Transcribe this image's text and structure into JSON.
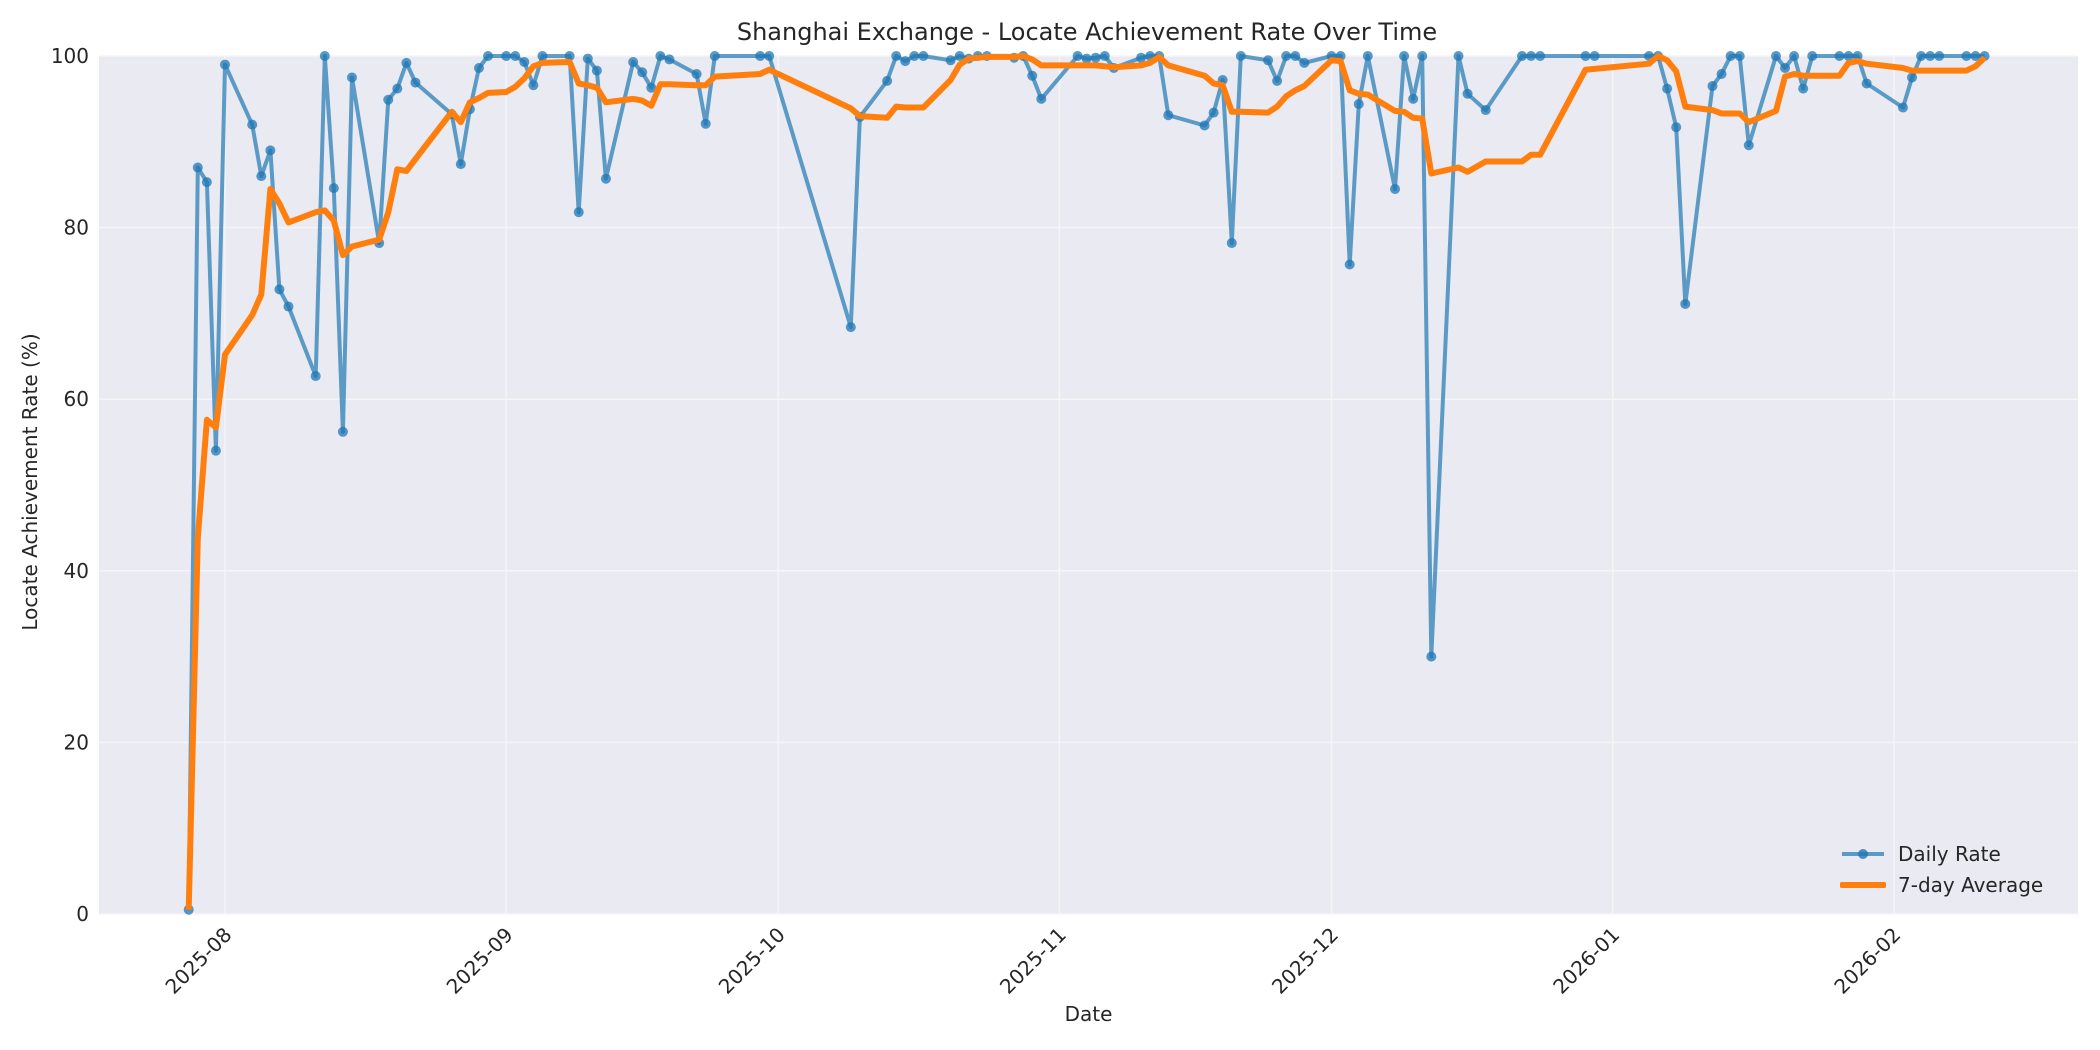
{
  "chart_data": {
    "type": "line",
    "title": "Shanghai Exchange - Locate Achievement Rate Over Time",
    "xlabel": "Date",
    "ylabel": "Locate Achievement Rate (%)",
    "ylim": [
      0,
      100
    ],
    "yticks": [
      0,
      20,
      40,
      60,
      80,
      100
    ],
    "xticks": [
      "2025-08",
      "2025-09",
      "2025-10",
      "2025-11",
      "2025-12",
      "2026-01",
      "2026-02"
    ],
    "grid": true,
    "legend_position": "lower right",
    "series": [
      {
        "name": "Daily Rate",
        "color": "#1f77b4",
        "marker": "circle",
        "points": [
          [
            "2025-07-28",
            0.5
          ],
          [
            "2025-07-29",
            87
          ],
          [
            "2025-07-30",
            85.3
          ],
          [
            "2025-07-31",
            54
          ],
          [
            "2025-08-01",
            99
          ],
          [
            "2025-08-04",
            92
          ],
          [
            "2025-08-05",
            86
          ],
          [
            "2025-08-06",
            89
          ],
          [
            "2025-08-07",
            72.8
          ],
          [
            "2025-08-08",
            70.8
          ],
          [
            "2025-08-11",
            62.7
          ],
          [
            "2025-08-12",
            100
          ],
          [
            "2025-08-13",
            84.6
          ],
          [
            "2025-08-14",
            56.2
          ],
          [
            "2025-08-15",
            97.5
          ],
          [
            "2025-08-18",
            78.2
          ],
          [
            "2025-08-19",
            94.9
          ],
          [
            "2025-08-20",
            96.2
          ],
          [
            "2025-08-21",
            99.2
          ],
          [
            "2025-08-22",
            96.9
          ],
          [
            "2025-08-26",
            93.2
          ],
          [
            "2025-08-27",
            87.4
          ],
          [
            "2025-08-28",
            93.8
          ],
          [
            "2025-08-29",
            98.6
          ],
          [
            "2025-08-30",
            100
          ],
          [
            "2025-09-01",
            100
          ],
          [
            "2025-09-02",
            100
          ],
          [
            "2025-09-03",
            99.3
          ],
          [
            "2025-09-04",
            96.6
          ],
          [
            "2025-09-05",
            100
          ],
          [
            "2025-09-08",
            100
          ],
          [
            "2025-09-09",
            81.8
          ],
          [
            "2025-09-10",
            99.7
          ],
          [
            "2025-09-11",
            98.3
          ],
          [
            "2025-09-12",
            85.7
          ],
          [
            "2025-09-15",
            99.3
          ],
          [
            "2025-09-16",
            98.1
          ],
          [
            "2025-09-17",
            96.3
          ],
          [
            "2025-09-18",
            100
          ],
          [
            "2025-09-19",
            99.6
          ],
          [
            "2025-09-22",
            97.9
          ],
          [
            "2025-09-23",
            92.1
          ],
          [
            "2025-09-24",
            100
          ],
          [
            "2025-09-29",
            100
          ],
          [
            "2025-09-30",
            100
          ],
          [
            "2025-10-09",
            68.4
          ],
          [
            "2025-10-10",
            92.9
          ],
          [
            "2025-10-13",
            97.1
          ],
          [
            "2025-10-14",
            100
          ],
          [
            "2025-10-15",
            99.4
          ],
          [
            "2025-10-16",
            100
          ],
          [
            "2025-10-17",
            100
          ],
          [
            "2025-10-20",
            99.5
          ],
          [
            "2025-10-21",
            100
          ],
          [
            "2025-10-22",
            99.7
          ],
          [
            "2025-10-23",
            100
          ],
          [
            "2025-10-24",
            100
          ],
          [
            "2025-10-27",
            99.8
          ],
          [
            "2025-10-28",
            100
          ],
          [
            "2025-10-29",
            97.7
          ],
          [
            "2025-10-30",
            95
          ],
          [
            "2025-11-03",
            100
          ],
          [
            "2025-11-04",
            99.7
          ],
          [
            "2025-11-05",
            99.8
          ],
          [
            "2025-11-06",
            100
          ],
          [
            "2025-11-07",
            98.6
          ],
          [
            "2025-11-10",
            99.8
          ],
          [
            "2025-11-11",
            100
          ],
          [
            "2025-11-12",
            100
          ],
          [
            "2025-11-13",
            93.1
          ],
          [
            "2025-11-17",
            91.9
          ],
          [
            "2025-11-18",
            93.4
          ],
          [
            "2025-11-19",
            97.2
          ],
          [
            "2025-11-20",
            78.2
          ],
          [
            "2025-11-21",
            100
          ],
          [
            "2025-11-24",
            99.5
          ],
          [
            "2025-11-25",
            97.1
          ],
          [
            "2025-11-26",
            100
          ],
          [
            "2025-11-27",
            100
          ],
          [
            "2025-11-28",
            99.2
          ],
          [
            "2025-12-01",
            100
          ],
          [
            "2025-12-02",
            100
          ],
          [
            "2025-12-03",
            75.7
          ],
          [
            "2025-12-04",
            94.4
          ],
          [
            "2025-12-05",
            100
          ],
          [
            "2025-12-08",
            84.5
          ],
          [
            "2025-12-09",
            100
          ],
          [
            "2025-12-10",
            95
          ],
          [
            "2025-12-11",
            100
          ],
          [
            "2025-12-12",
            30
          ],
          [
            "2025-12-15",
            100
          ],
          [
            "2025-12-16",
            95.6
          ],
          [
            "2025-12-18",
            93.7
          ],
          [
            "2025-12-22",
            100
          ],
          [
            "2025-12-23",
            100
          ],
          [
            "2025-12-24",
            100
          ],
          [
            "2025-12-29",
            100
          ],
          [
            "2025-12-30",
            100
          ],
          [
            "2026-01-05",
            100
          ],
          [
            "2026-01-06",
            100
          ],
          [
            "2026-01-07",
            96.2
          ],
          [
            "2026-01-08",
            91.7
          ],
          [
            "2026-01-09",
            71.1
          ],
          [
            "2026-01-12",
            96.5
          ],
          [
            "2026-01-13",
            97.9
          ],
          [
            "2026-01-14",
            100
          ],
          [
            "2026-01-15",
            100
          ],
          [
            "2026-01-16",
            89.6
          ],
          [
            "2026-01-19",
            100
          ],
          [
            "2026-01-20",
            98.6
          ],
          [
            "2026-01-21",
            100
          ],
          [
            "2026-01-22",
            96.2
          ],
          [
            "2026-01-23",
            100
          ],
          [
            "2026-01-26",
            100
          ],
          [
            "2026-01-27",
            100
          ],
          [
            "2026-01-28",
            100
          ],
          [
            "2026-01-29",
            96.8
          ],
          [
            "2026-02-02",
            94
          ],
          [
            "2026-02-03",
            97.5
          ],
          [
            "2026-02-04",
            100
          ],
          [
            "2026-02-05",
            100
          ],
          [
            "2026-02-06",
            100
          ],
          [
            "2026-02-09",
            100
          ],
          [
            "2026-02-10",
            100
          ],
          [
            "2026-02-11",
            100
          ]
        ]
      },
      {
        "name": "7-day Average",
        "color": "#ff7f0e",
        "marker": "none",
        "points": [
          [
            "2025-07-28",
            0.5
          ],
          [
            "2025-07-29",
            43.8
          ],
          [
            "2025-07-30",
            57.6
          ],
          [
            "2025-07-31",
            56.7
          ],
          [
            "2025-08-01",
            65.2
          ],
          [
            "2025-08-04",
            69.8
          ],
          [
            "2025-08-05",
            72.2
          ],
          [
            "2025-08-06",
            84.5
          ],
          [
            "2025-08-07",
            82.8
          ],
          [
            "2025-08-08",
            80.6
          ],
          [
            "2025-08-11",
            81.8
          ],
          [
            "2025-08-12",
            82
          ],
          [
            "2025-08-13",
            80.8
          ],
          [
            "2025-08-14",
            76.8
          ],
          [
            "2025-08-15",
            77.8
          ],
          [
            "2025-08-18",
            78.6
          ],
          [
            "2025-08-19",
            81.8
          ],
          [
            "2025-08-20",
            86.8
          ],
          [
            "2025-08-21",
            86.6
          ],
          [
            "2025-08-22",
            88
          ],
          [
            "2025-08-26",
            93.5
          ],
          [
            "2025-08-27",
            92.3
          ],
          [
            "2025-08-28",
            94.6
          ],
          [
            "2025-08-29",
            95.1
          ],
          [
            "2025-08-30",
            95.7
          ],
          [
            "2025-09-01",
            95.8
          ],
          [
            "2025-09-02",
            96.4
          ],
          [
            "2025-09-03",
            97.4
          ],
          [
            "2025-09-04",
            98.8
          ],
          [
            "2025-09-05",
            99.2
          ],
          [
            "2025-09-08",
            99.3
          ],
          [
            "2025-09-09",
            96.8
          ],
          [
            "2025-09-10",
            96.6
          ],
          [
            "2025-09-11",
            96.3
          ],
          [
            "2025-09-12",
            94.6
          ],
          [
            "2025-09-15",
            95
          ],
          [
            "2025-09-16",
            94.8
          ],
          [
            "2025-09-17",
            94.2
          ],
          [
            "2025-09-18",
            96.7
          ],
          [
            "2025-09-19",
            96.7
          ],
          [
            "2025-09-22",
            96.6
          ],
          [
            "2025-09-23",
            96.6
          ],
          [
            "2025-09-24",
            97.6
          ],
          [
            "2025-09-29",
            97.9
          ],
          [
            "2025-09-30",
            98.4
          ],
          [
            "2025-10-09",
            93.9
          ],
          [
            "2025-10-10",
            93
          ],
          [
            "2025-10-13",
            92.8
          ],
          [
            "2025-10-14",
            94.1
          ],
          [
            "2025-10-15",
            94
          ],
          [
            "2025-10-16",
            94
          ],
          [
            "2025-10-17",
            94
          ],
          [
            "2025-10-20",
            97.2
          ],
          [
            "2025-10-21",
            99
          ],
          [
            "2025-10-22",
            99.7
          ],
          [
            "2025-10-23",
            99.8
          ],
          [
            "2025-10-24",
            99.9
          ],
          [
            "2025-10-27",
            99.9
          ],
          [
            "2025-10-28",
            100
          ],
          [
            "2025-10-29",
            99.6
          ],
          [
            "2025-10-30",
            98.9
          ],
          [
            "2025-11-03",
            98.9
          ],
          [
            "2025-11-04",
            98.9
          ],
          [
            "2025-11-05",
            98.9
          ],
          [
            "2025-11-06",
            98.8
          ],
          [
            "2025-11-07",
            98.7
          ],
          [
            "2025-11-10",
            98.9
          ],
          [
            "2025-11-11",
            99.2
          ],
          [
            "2025-11-12",
            99.9
          ],
          [
            "2025-11-13",
            98.9
          ],
          [
            "2025-11-17",
            97.7
          ],
          [
            "2025-11-18",
            96.8
          ],
          [
            "2025-11-19",
            96.6
          ],
          [
            "2025-11-20",
            93.5
          ],
          [
            "2025-11-21",
            93.5
          ],
          [
            "2025-11-24",
            93.4
          ],
          [
            "2025-11-25",
            94.1
          ],
          [
            "2025-11-26",
            95.3
          ],
          [
            "2025-11-27",
            96
          ],
          [
            "2025-11-28",
            96.5
          ],
          [
            "2025-12-01",
            99.5
          ],
          [
            "2025-12-02",
            99.4
          ],
          [
            "2025-12-03",
            96
          ],
          [
            "2025-12-04",
            95.6
          ],
          [
            "2025-12-05",
            95.5
          ],
          [
            "2025-12-08",
            93.6
          ],
          [
            "2025-12-09",
            93.5
          ],
          [
            "2025-12-10",
            92.8
          ],
          [
            "2025-12-11",
            92.7
          ],
          [
            "2025-12-12",
            86.3
          ],
          [
            "2025-12-15",
            87
          ],
          [
            "2025-12-16",
            86.5
          ],
          [
            "2025-12-18",
            87.7
          ],
          [
            "2025-12-22",
            87.7
          ],
          [
            "2025-12-23",
            88.5
          ],
          [
            "2025-12-24",
            88.5
          ],
          [
            "2025-12-29",
            98.4
          ],
          [
            "2025-12-30",
            98.5
          ],
          [
            "2026-01-05",
            99.1
          ],
          [
            "2026-01-06",
            100
          ],
          [
            "2026-01-07",
            99.5
          ],
          [
            "2026-01-08",
            98.2
          ],
          [
            "2026-01-09",
            94.1
          ],
          [
            "2026-01-12",
            93.7
          ],
          [
            "2026-01-13",
            93.3
          ],
          [
            "2026-01-14",
            93.3
          ],
          [
            "2026-01-15",
            93.3
          ],
          [
            "2026-01-16",
            92.3
          ],
          [
            "2026-01-19",
            93.6
          ],
          [
            "2026-01-20",
            97.6
          ],
          [
            "2026-01-21",
            97.9
          ],
          [
            "2026-01-22",
            97.7
          ],
          [
            "2026-01-23",
            97.7
          ],
          [
            "2026-01-26",
            97.7
          ],
          [
            "2026-01-27",
            99.2
          ],
          [
            "2026-01-28",
            99.4
          ],
          [
            "2026-01-29",
            99.1
          ],
          [
            "2026-02-02",
            98.6
          ],
          [
            "2026-02-03",
            98.3
          ],
          [
            "2026-02-04",
            98.3
          ],
          [
            "2026-02-05",
            98.3
          ],
          [
            "2026-02-06",
            98.3
          ],
          [
            "2026-02-09",
            98.3
          ],
          [
            "2026-02-10",
            98.8
          ],
          [
            "2026-02-11",
            99.8
          ]
        ]
      }
    ]
  },
  "legend": {
    "daily_label": "Daily Rate",
    "avg_label": "7-day Average"
  }
}
